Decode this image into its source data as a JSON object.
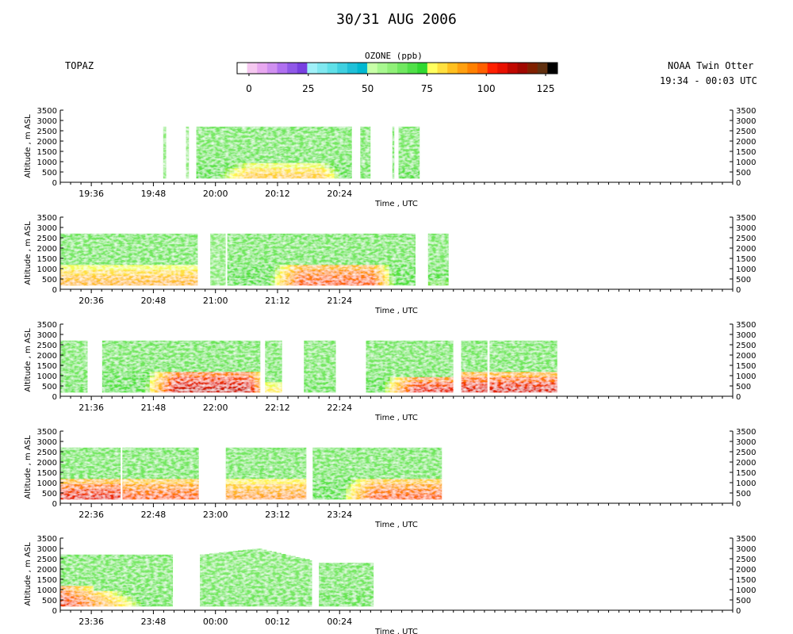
{
  "header": {
    "title": "30/31 AUG 2006",
    "left_label": "TOPAZ",
    "right_label_line1": "NOAA Twin Otter",
    "right_label_line2": "19:34 - 00:03 UTC"
  },
  "colorbar": {
    "title": "OZONE (ppb)",
    "ticks": [
      "0",
      "25",
      "50",
      "75",
      "100",
      "125"
    ],
    "tick_values": [
      0,
      25,
      50,
      75,
      100,
      125
    ],
    "range": [
      -5,
      130
    ],
    "colors": [
      "#ffffff",
      "#f5c8f0",
      "#e8a8f0",
      "#d090f0",
      "#b070f0",
      "#9058e8",
      "#7840e0",
      "#a0f0f8",
      "#80e8f0",
      "#60e0e8",
      "#40d0e0",
      "#20c0d8",
      "#00b8d0",
      "#c8ffa8",
      "#a8f890",
      "#90f078",
      "#70e860",
      "#50e048",
      "#30d830",
      "#ffff60",
      "#ffe040",
      "#ffc020",
      "#ffa010",
      "#ff8000",
      "#ff6000",
      "#ff2000",
      "#e81000",
      "#c00800",
      "#a00800",
      "#802000",
      "#603010",
      "#000000"
    ]
  },
  "chart_data": [
    {
      "type": "heatmap",
      "panel": 1,
      "xlabel": "Time , UTC",
      "ylabel": "Altitude , m ASL",
      "ylim": [
        0,
        3500
      ],
      "yticks": [
        0,
        500,
        1000,
        1500,
        2000,
        2500,
        3000,
        3500
      ],
      "xlim_minutes": [
        1170,
        1300
      ],
      "xtick_labels": [
        "19:36",
        "19:48",
        "20:00",
        "20:12",
        "20:24"
      ],
      "xtick_minutes": [
        1176,
        1188,
        1200,
        1212,
        1224
      ],
      "segments": [
        {
          "start": "19:49.9",
          "end": "19:50.4",
          "start_min": 1189.9,
          "end_min": 1190.4,
          "top": 2700,
          "bottom": 200,
          "background": 55,
          "layer_peak": 55,
          "layer_top": 500
        },
        {
          "start": "19:54.3",
          "end": "19:54.8",
          "start_min": 1194.3,
          "end_min": 1194.8,
          "top": 2700,
          "bottom": 200,
          "background": 50,
          "layer_peak": 45,
          "layer_top": 600
        },
        {
          "start": "19:56.3",
          "end": "20:26.3",
          "start_min": 1196.3,
          "end_min": 1226.3,
          "top": 2700,
          "bottom": 200,
          "background": 62,
          "layer_peak": 85,
          "layer_top": 900,
          "peak_start_min": 1206,
          "peak_end_min": 1220
        },
        {
          "start": "20:28.0",
          "end": "20:29.9",
          "start_min": 1228.0,
          "end_min": 1229.9,
          "top": 2700,
          "bottom": 200,
          "background": 62,
          "layer_peak": 62,
          "layer_top": 800
        },
        {
          "start": "20:34.2",
          "end": "20:34.5",
          "start_min": 1234.2,
          "end_min": 1234.5,
          "top": 2700,
          "bottom": 200,
          "background": 62,
          "layer_peak": 62,
          "layer_top": 800
        },
        {
          "start": "20:35.4",
          "end": "20:39.4",
          "start_min": 1235.4,
          "end_min": 1239.4,
          "top": 2700,
          "bottom": 200,
          "background": 62,
          "layer_peak": 70,
          "layer_top": 800
        }
      ]
    },
    {
      "type": "heatmap",
      "panel": 2,
      "xlabel": "Time , UTC",
      "ylabel": "Altitude , m ASL",
      "ylim": [
        0,
        3500
      ],
      "yticks": [
        0,
        500,
        1000,
        1500,
        2000,
        2500,
        3000,
        3500
      ],
      "xlim_minutes": [
        1230,
        1360
      ],
      "xtick_labels": [
        "20:36",
        "20:48",
        "21:00",
        "21:12",
        "21:24"
      ],
      "xtick_minutes": [
        1236,
        1248,
        1260,
        1272,
        1284
      ],
      "segments": [
        {
          "start": "20:30.0",
          "end": "20:56.5",
          "start_min": 1230.0,
          "end_min": 1256.5,
          "top": 2700,
          "bottom": 200,
          "background": 62,
          "layer_peak": 88,
          "layer_top": 1100
        },
        {
          "start": "20:59.0",
          "end": "21:01.9",
          "start_min": 1259.0,
          "end_min": 1261.9,
          "top": 2700,
          "bottom": 200,
          "background": 55,
          "layer_peak": 50,
          "layer_top": 800
        },
        {
          "start": "21:02.3",
          "end": "21:38.6",
          "start_min": 1262.3,
          "end_min": 1298.6,
          "top": 2700,
          "bottom": 200,
          "background": 62,
          "layer_peak": 100,
          "layer_top": 1300,
          "peak_start_min": 1276,
          "peak_end_min": 1290
        },
        {
          "start": "21:41.1",
          "end": "21:45.0",
          "start_min": 1301.1,
          "end_min": 1305.0,
          "top": 2700,
          "bottom": 200,
          "background": 62,
          "layer_peak": 72,
          "layer_top": 900
        }
      ]
    },
    {
      "type": "heatmap",
      "panel": 3,
      "xlabel": "Time , UTC",
      "ylabel": "Altitude , m ASL",
      "ylim": [
        0,
        3500
      ],
      "yticks": [
        0,
        500,
        1000,
        1500,
        2000,
        2500,
        3000,
        3500
      ],
      "xlim_minutes": [
        1290,
        1420
      ],
      "xtick_labels": [
        "21:36",
        "21:48",
        "22:00",
        "22:12",
        "22:24"
      ],
      "xtick_minutes": [
        1296,
        1308,
        1320,
        1332,
        1344
      ],
      "segments": [
        {
          "start": "21:30.0",
          "end": "21:35.2",
          "start_min": 1290.0,
          "end_min": 1295.2,
          "top": 2700,
          "bottom": 200,
          "background": 62,
          "layer_peak": 65,
          "layer_top": 700
        },
        {
          "start": "21:38.1",
          "end": "22:08.6",
          "start_min": 1298.1,
          "end_min": 1328.6,
          "top": 2700,
          "bottom": 200,
          "background": 62,
          "layer_peak": 112,
          "layer_top": 1300,
          "peak_start_min": 1312,
          "peak_end_min": 1326
        },
        {
          "start": "22:09.6",
          "end": "22:12.8",
          "start_min": 1329.6,
          "end_min": 1332.8,
          "top": 2700,
          "bottom": 200,
          "background": 62,
          "layer_peak": 80,
          "layer_top": 800
        },
        {
          "start": "22:17.1",
          "end": "22:23.2",
          "start_min": 1337.1,
          "end_min": 1343.2,
          "top": 2700,
          "bottom": 200,
          "background": 62,
          "layer_peak": 65,
          "layer_top": 700
        },
        {
          "start": "22:29.1",
          "end": "22:45.9",
          "start_min": 1349.1,
          "end_min": 1365.9,
          "top": 2700,
          "bottom": 200,
          "background": 62,
          "layer_peak": 108,
          "layer_top": 1000,
          "peak_start_min": 1358,
          "peak_end_min": 1370
        },
        {
          "start": "22:47.5",
          "end": "22:52.5",
          "start_min": 1367.5,
          "end_min": 1372.5,
          "top": 2700,
          "bottom": 200,
          "background": 62,
          "layer_peak": 110,
          "layer_top": 1100
        },
        {
          "start": "22:53.0",
          "end": "23:06.0",
          "start_min": 1373.0,
          "end_min": 1386.0,
          "top": 2700,
          "bottom": 200,
          "background": 62,
          "layer_peak": 110,
          "layer_top": 1100
        }
      ]
    },
    {
      "type": "heatmap",
      "panel": 4,
      "xlabel": "Time , UTC",
      "ylabel": "Altitude , m ASL",
      "ylim": [
        0,
        3500
      ],
      "yticks": [
        0,
        500,
        1000,
        1500,
        2000,
        2500,
        3000,
        3500
      ],
      "xlim_minutes": [
        1350,
        1480
      ],
      "xtick_labels": [
        "22:36",
        "22:48",
        "23:00",
        "23:12",
        "23:24"
      ],
      "xtick_minutes": [
        1356,
        1368,
        1380,
        1392,
        1404
      ],
      "segments": [
        {
          "start": "22:30.0",
          "end": "22:41.6",
          "start_min": 1350.0,
          "end_min": 1361.6,
          "top": 2700,
          "bottom": 200,
          "background": 62,
          "layer_peak": 108,
          "layer_top": 1100
        },
        {
          "start": "22:42.0",
          "end": "22:56.7",
          "start_min": 1362.0,
          "end_min": 1376.7,
          "top": 2700,
          "bottom": 200,
          "background": 62,
          "layer_peak": 100,
          "layer_top": 1150
        },
        {
          "start": "23:02.0",
          "end": "23:17.5",
          "start_min": 1382.0,
          "end_min": 1397.5,
          "top": 2700,
          "bottom": 200,
          "background": 62,
          "layer_peak": 92,
          "layer_top": 1100
        },
        {
          "start": "23:18.8",
          "end": "23:43.7",
          "start_min": 1398.8,
          "end_min": 1423.7,
          "top": 2700,
          "bottom": 200,
          "background": 62,
          "layer_peak": 100,
          "layer_top": 1150,
          "peak_start_min": 1410,
          "peak_end_min": 1424
        }
      ]
    },
    {
      "type": "heatmap",
      "panel": 5,
      "xlabel": "Time , UTC",
      "ylabel": "Altitude , m ASL",
      "ylim": [
        0,
        3500
      ],
      "yticks": [
        0,
        500,
        1000,
        1500,
        2000,
        2500,
        3000,
        3500
      ],
      "xlim_minutes": [
        1410,
        1540
      ],
      "xtick_labels": [
        "23:36",
        "23:48",
        "00:00",
        "00:12",
        "00:24"
      ],
      "xtick_minutes": [
        1416,
        1428,
        1440,
        1452,
        1464
      ],
      "segments": [
        {
          "start": "23:30.0",
          "end": "23:51.7",
          "start_min": 1410.0,
          "end_min": 1431.7,
          "top": 2700,
          "bottom": 200,
          "background": 62,
          "layer_peak": 105,
          "layer_top": 1300,
          "taper": true
        },
        {
          "start": "23:57.0",
          "end": "00:18.6",
          "start_min": 1437.0,
          "end_min": 1458.6,
          "top": 3000,
          "bottom": 200,
          "background": 60,
          "layer_peak": 62,
          "layer_top": 800
        },
        {
          "start": "00:20.0",
          "end": "00:30.5",
          "start_min": 1460.0,
          "end_min": 1470.5,
          "top": 2300,
          "bottom": 200,
          "background": 62,
          "layer_peak": 65,
          "layer_top": 800
        }
      ]
    }
  ]
}
